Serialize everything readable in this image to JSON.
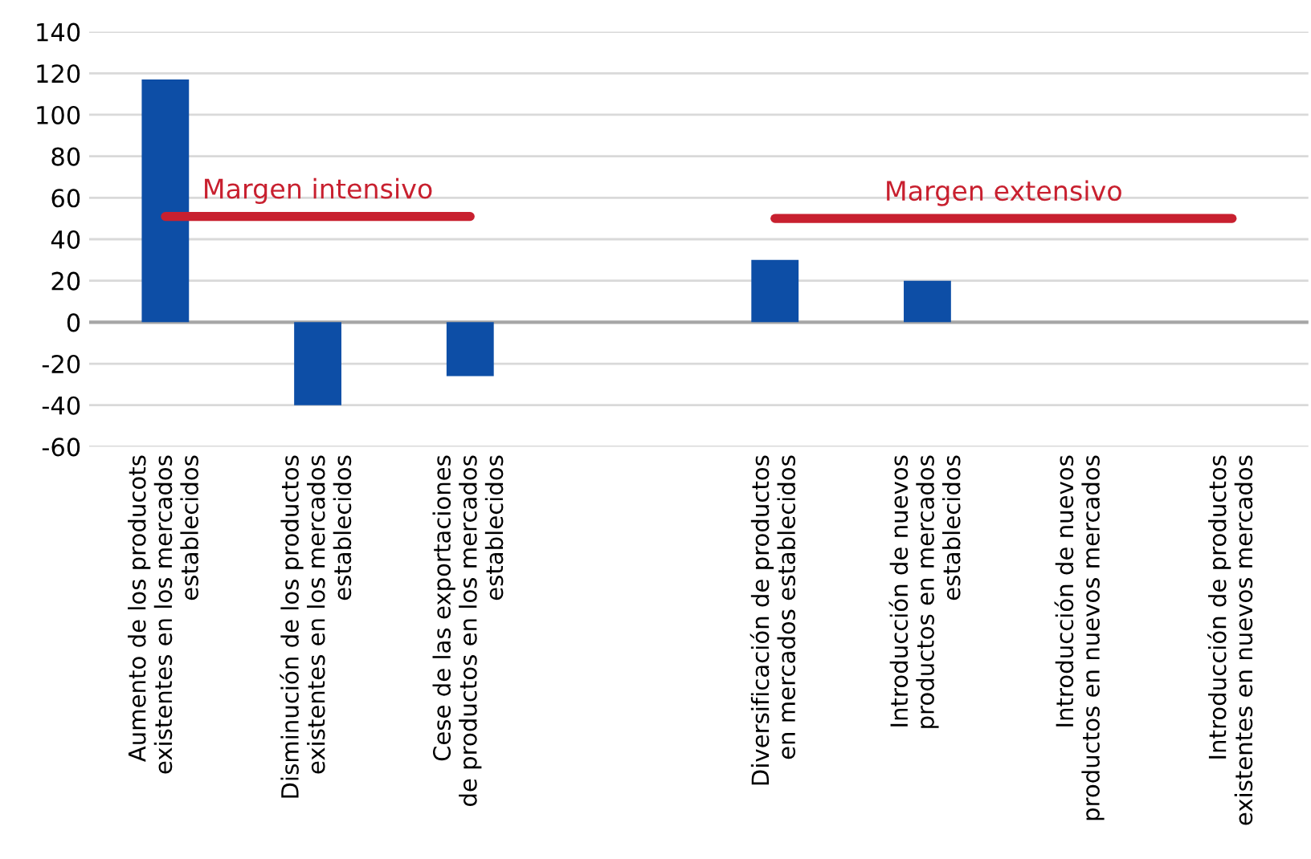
{
  "chart_data": {
    "type": "bar",
    "categories": [
      "Aumento de los producots\nexistentes en los mercados\nestablecidos",
      "Disminución de los productos\nexistentes en los mercados\nestablecidos",
      "Cese de las exportaciones\nde productos en los mercados\nestablecidos",
      null,
      "Diversificación de productos\nen mercados establecidos",
      "Introducción de nuevos\nproductos en mercados\nestablecidos",
      "Introducción de nuevos\nproductos en nuevos mercados",
      "Introducción de productos\nexistentes en nuevos mercados"
    ],
    "series": [
      {
        "color": "#0d4ea6",
        "values": [
          117,
          -40,
          -26,
          null,
          30,
          20,
          0,
          0
        ]
      },
      {
        "type": "line",
        "name": "Margen intensivo",
        "color": "#c8202f",
        "values": [
          51,
          51,
          51,
          null,
          null,
          null,
          null,
          null
        ]
      },
      {
        "type": "line",
        "name": "Margen extensivo",
        "color": "#c8202f",
        "values": [
          null,
          null,
          null,
          null,
          50,
          50,
          50,
          50
        ]
      }
    ],
    "ylim": [
      -60,
      140
    ],
    "yticks": [
      -60,
      -40,
      -20,
      0,
      20,
      40,
      60,
      80,
      100,
      120,
      140
    ],
    "grid": "y",
    "legend": false
  }
}
